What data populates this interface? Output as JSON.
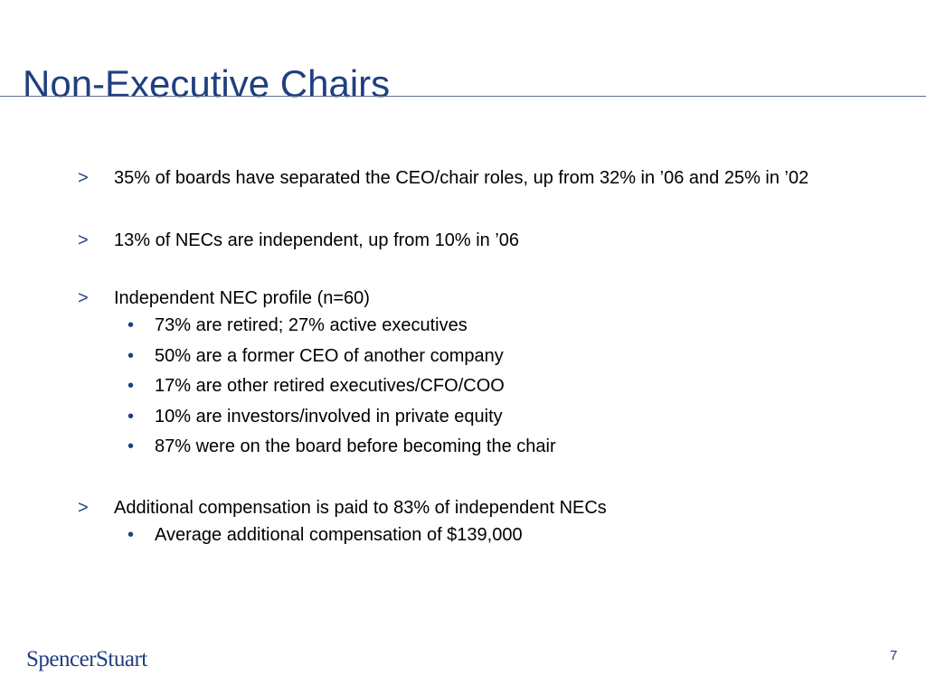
{
  "slide": {
    "title": "Non-Executive Chairs",
    "bullet_marker": ">",
    "sub_marker": "•",
    "bullets": [
      {
        "text": "35% of boards have separated the CEO/chair roles, up from 32% in ’06 and 25% in ’02",
        "subs": []
      },
      {
        "text": "13% of NECs are independent, up from 10% in ’06",
        "subs": []
      },
      {
        "text": "Independent NEC profile (n=60)",
        "subs": [
          "73% are retired; 27% active executives",
          "50% are a former CEO of another company",
          "17% are other retired executives/CFO/COO",
          "10% are investors/involved in private equity",
          "87% were on the board before becoming the chair"
        ]
      },
      {
        "text": "Additional compensation is paid to 83% of independent NECs",
        "subs": [
          "Average additional compensation of $139,000"
        ]
      }
    ]
  },
  "footer": {
    "logo_text": "SpencerStuart",
    "page_number": "7"
  },
  "colors": {
    "accent": "#1f3f7f",
    "rule": "#5f6e8c"
  }
}
